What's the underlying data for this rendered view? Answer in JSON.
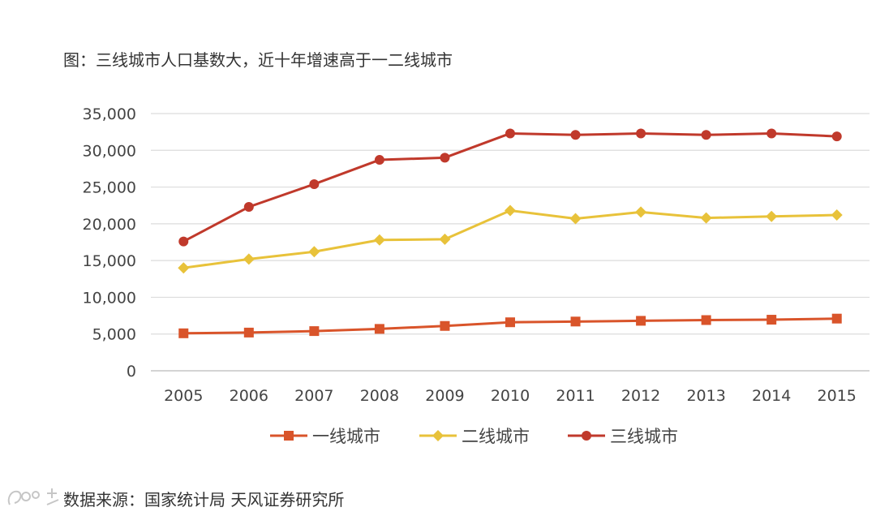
{
  "chart_data": {
    "type": "line",
    "title": "图：三线城市人口基数大，近十年增速高于一二线城市",
    "x": [
      "2005",
      "2006",
      "2007",
      "2008",
      "2009",
      "2010",
      "2011",
      "2012",
      "2013",
      "2014",
      "2015"
    ],
    "ylim": [
      0,
      35000
    ],
    "yticks": [
      0,
      5000,
      10000,
      15000,
      20000,
      25000,
      30000,
      35000
    ],
    "ytick_labels": [
      "0",
      "5,000",
      "10,000",
      "15,000",
      "20,000",
      "25,000",
      "30,000",
      "35,000"
    ],
    "grid": true,
    "legend_position": "bottom",
    "series": [
      {
        "name": "一线城市",
        "marker": "square",
        "color": "#d9542a",
        "values": [
          5100,
          5200,
          5400,
          5700,
          6100,
          6600,
          6700,
          6800,
          6900,
          6950,
          7100
        ]
      },
      {
        "name": "二线城市",
        "marker": "diamond",
        "color": "#e8c23a",
        "values": [
          14000,
          15200,
          16200,
          17800,
          17900,
          21800,
          20700,
          21600,
          20800,
          21000,
          21200
        ]
      },
      {
        "name": "三线城市",
        "marker": "circle",
        "color": "#c0392b",
        "values": [
          17600,
          22300,
          25400,
          28700,
          29000,
          32300,
          32100,
          32300,
          32100,
          32300,
          31900
        ]
      }
    ]
  },
  "source_note": "数据来源：国家统计局 天风证券研究所"
}
